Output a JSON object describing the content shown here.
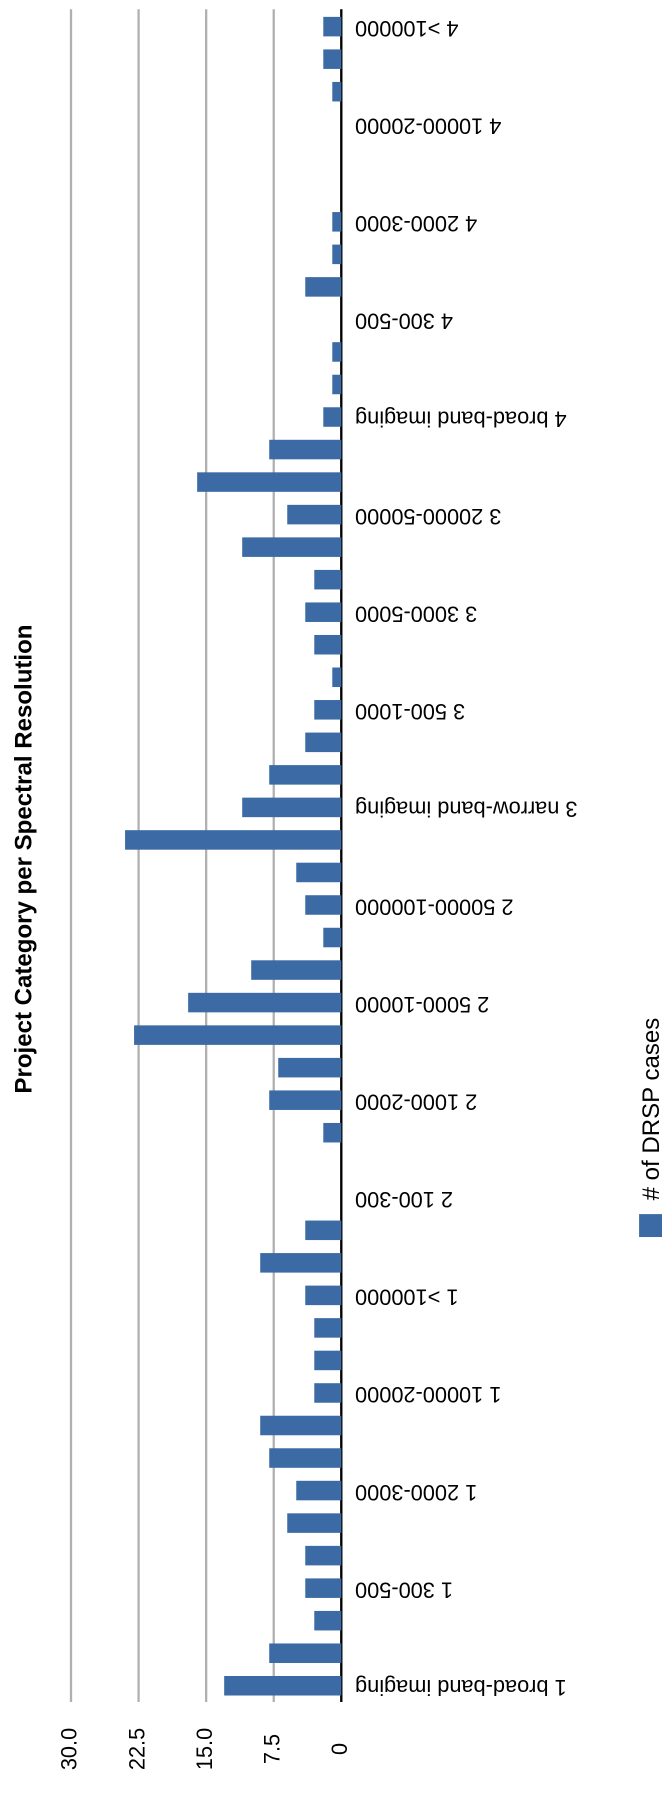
{
  "chart_data": {
    "type": "bar",
    "title": "Project Category per Spectral Resolution",
    "categories": [
      "1 broad-band imaging",
      null,
      null,
      "1 300-500",
      null,
      null,
      "1 2000-3000",
      null,
      null,
      "1 10000-20000",
      null,
      null,
      "1 >100000",
      null,
      null,
      "2 100-300",
      null,
      null,
      "2 1000-2000",
      null,
      null,
      "2 5000-10000",
      null,
      null,
      "2 50000-100000",
      null,
      null,
      "3 narrow-band imaging",
      null,
      null,
      "3 500-1000",
      null,
      null,
      "3 3000-5000",
      null,
      null,
      "3 20000-50000",
      null,
      null,
      "4 broad-band imaging",
      null,
      null,
      "4 300-500",
      null,
      null,
      "4 2000-3000",
      null,
      null,
      "4 10000-20000",
      null,
      null,
      "4 >100000"
    ],
    "series": [
      {
        "name": "# of DRSP cases",
        "color": "#3b6aa4",
        "values": [
          13,
          8,
          3,
          4,
          4,
          6,
          5,
          8,
          9,
          3,
          3,
          3,
          4,
          9,
          4,
          0,
          0,
          2,
          8,
          7,
          23,
          17,
          10,
          2,
          4,
          5,
          24,
          11,
          8,
          4,
          3,
          1,
          3,
          4,
          3,
          11,
          6,
          16,
          8,
          2,
          1,
          1,
          0,
          4,
          1,
          1,
          0,
          0,
          0,
          1,
          2,
          2
        ]
      }
    ],
    "ylim": [
      0,
      30
    ],
    "yticks": [
      0,
      7.5,
      {
        "value": 15,
        "label": "15.0"
      },
      {
        "value": 22.5,
        "label": "22.5"
      },
      {
        "value": 30,
        "label": "30.0"
      }
    ],
    "grid": true,
    "legend": "bottom"
  }
}
